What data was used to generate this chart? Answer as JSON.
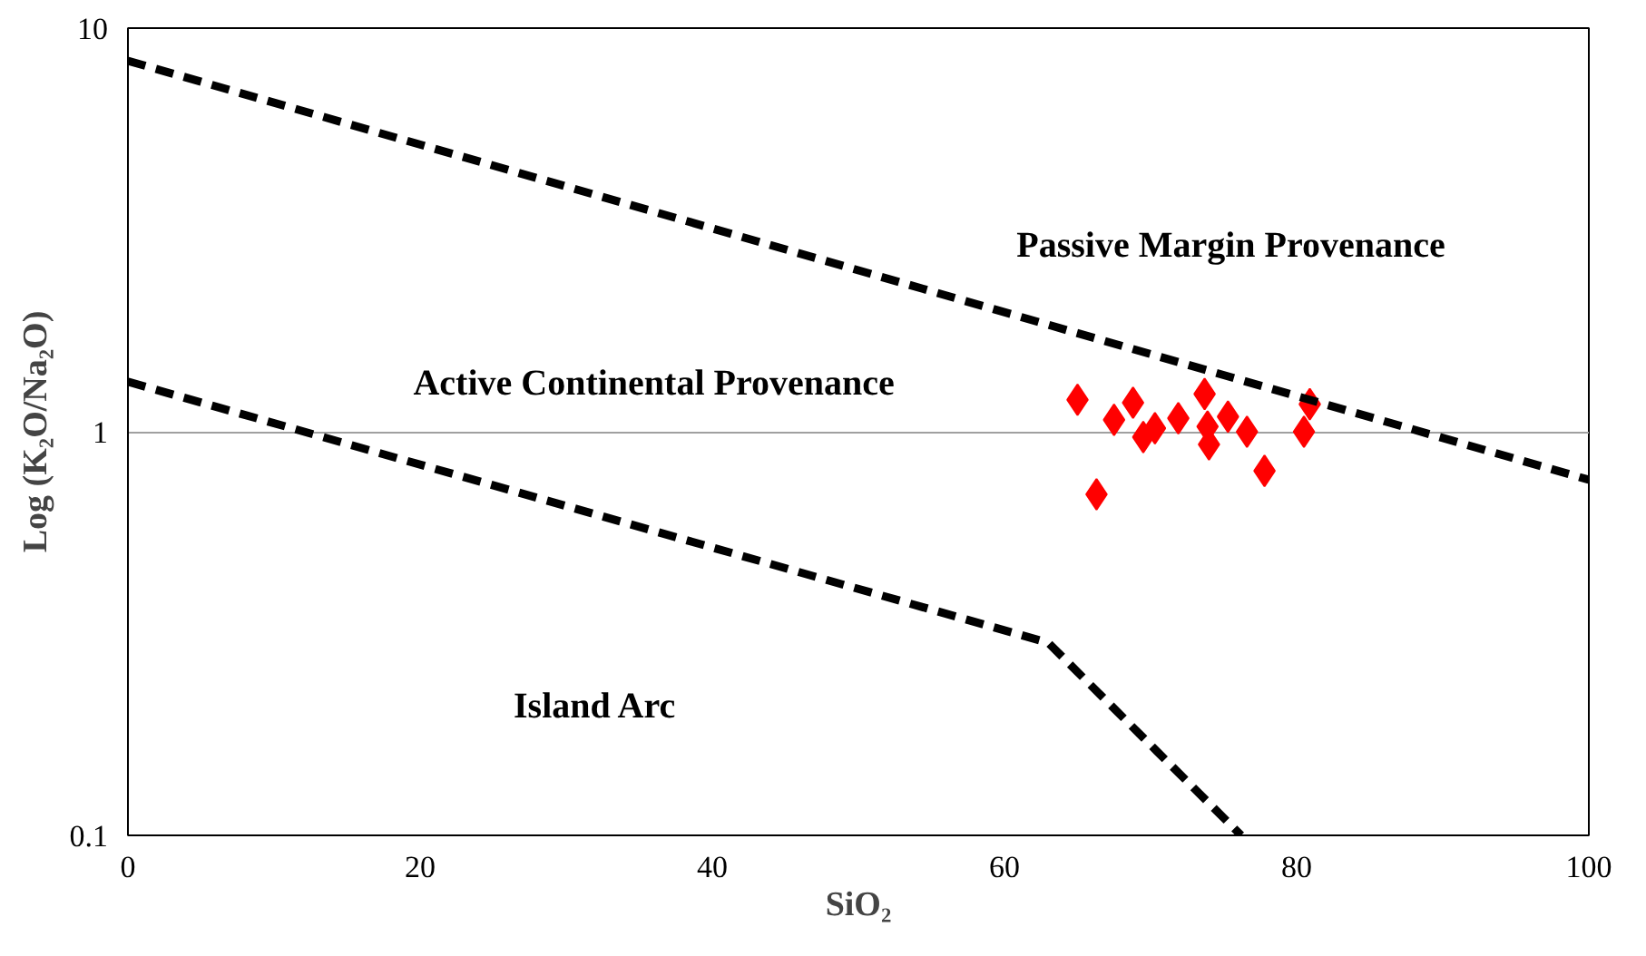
{
  "chart_data": {
    "type": "scatter",
    "xlabel": "SiO₂",
    "ylabel": "Log (K₂O/Na₂O)",
    "log": "y",
    "xlim": [
      0,
      100
    ],
    "ylim": [
      0.1,
      10
    ],
    "xticks": [
      0,
      20,
      40,
      60,
      80,
      100
    ],
    "yticks": [
      0.1,
      1,
      10
    ],
    "grid": "y",
    "marker": "diamond",
    "series": [
      {
        "color": "#ff0000",
        "x": [
          65.0,
          67.5,
          68.8,
          69.5,
          70.3,
          71.9,
          73.7,
          73.9,
          74.0,
          75.3,
          76.6,
          77.8,
          80.5,
          80.9,
          66.3
        ],
        "values": [
          1.2,
          1.07,
          1.18,
          0.97,
          1.02,
          1.08,
          1.24,
          1.03,
          0.93,
          1.09,
          1.0,
          0.8,
          1.0,
          1.17,
          0.7
        ]
      },
      {
        "type": "line",
        "color": "#000000",
        "line_style": "dashed",
        "marker": "none",
        "x": [
          0,
          100
        ],
        "values": [
          8.3,
          0.76
        ]
      },
      {
        "type": "line",
        "color": "#000000",
        "line_style": "dashed",
        "marker": "none",
        "x": [
          0,
          63,
          76.2
        ],
        "values": [
          1.33,
          0.3,
          0.1
        ]
      }
    ],
    "annotations": [
      "Passive Margin Provenance",
      "Active Continental Provenance",
      "Island Arc"
    ]
  }
}
